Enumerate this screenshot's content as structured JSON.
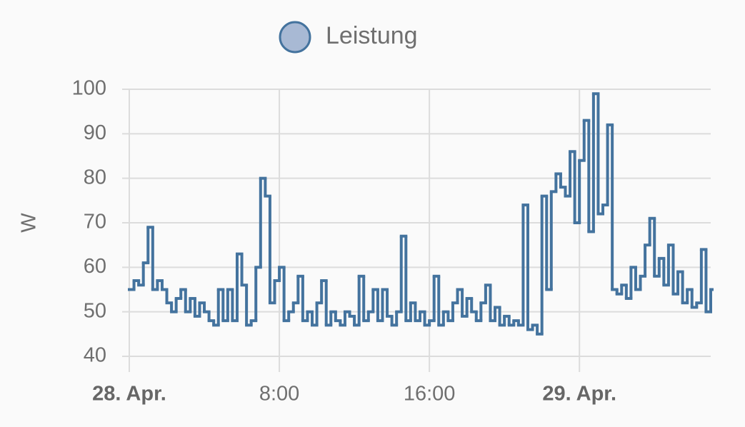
{
  "chart_data": {
    "type": "step-line",
    "ylabel": "W",
    "legend": "top",
    "grid": true,
    "xlim": [
      0,
      31
    ],
    "ylim": [
      40,
      100
    ],
    "yticks": [
      40,
      50,
      60,
      70,
      80,
      90,
      100
    ],
    "xticks": [
      {
        "value": 0,
        "label": "28. Apr."
      },
      {
        "value": 8,
        "label": "8:00"
      },
      {
        "value": 16,
        "label": "16:00"
      },
      {
        "value": 24,
        "label": "29. Apr."
      }
    ],
    "bold_xticks": [
      0,
      24
    ],
    "x": [
      0,
      0.25,
      0.5,
      0.75,
      1,
      1.25,
      1.5,
      1.75,
      2,
      2.25,
      2.5,
      2.75,
      3,
      3.25,
      3.5,
      3.75,
      4,
      4.25,
      4.5,
      4.75,
      5,
      5.25,
      5.5,
      5.75,
      6,
      6.25,
      6.5,
      6.75,
      7,
      7.25,
      7.5,
      7.75,
      8,
      8.25,
      8.5,
      8.75,
      9,
      9.25,
      9.5,
      9.75,
      10,
      10.25,
      10.5,
      10.75,
      11,
      11.25,
      11.5,
      11.75,
      12,
      12.25,
      12.5,
      12.75,
      13,
      13.25,
      13.5,
      13.75,
      14,
      14.25,
      14.5,
      14.75,
      15,
      15.25,
      15.5,
      15.75,
      16,
      16.25,
      16.5,
      16.75,
      17,
      17.25,
      17.5,
      17.75,
      18,
      18.25,
      18.5,
      18.75,
      19,
      19.25,
      19.5,
      19.75,
      20,
      20.25,
      20.5,
      20.75,
      21,
      21.25,
      21.5,
      21.75,
      22,
      22.25,
      22.5,
      22.75,
      23,
      23.25,
      23.5,
      23.75,
      24,
      24.25,
      24.5,
      24.75,
      25,
      25.25,
      25.5,
      25.75,
      26,
      26.25,
      26.5,
      26.75,
      27,
      27.25,
      27.5,
      27.75,
      28,
      28.25,
      28.5,
      28.75,
      29,
      29.25,
      29.5,
      29.75,
      30,
      30.25,
      30.5,
      30.75,
      31
    ],
    "series": [
      {
        "name": "Leistung",
        "color": "#44739e",
        "fill": "#a8b9d4",
        "values": [
          55,
          57,
          56,
          61,
          69,
          55,
          57,
          55,
          52,
          50,
          53,
          55,
          50,
          53,
          49,
          52,
          50,
          48,
          47,
          55,
          48,
          55,
          48,
          63,
          56,
          47,
          48,
          60,
          80,
          76,
          52,
          57,
          60,
          48,
          50,
          52,
          58,
          48,
          50,
          47,
          52,
          57,
          47,
          50,
          48,
          47,
          50,
          49,
          47,
          58,
          48,
          50,
          55,
          48,
          55,
          49,
          47,
          50,
          67,
          48,
          52,
          48,
          50,
          47,
          48,
          58,
          47,
          50,
          48,
          52,
          55,
          49,
          53,
          50,
          48,
          52,
          56,
          48,
          51,
          47,
          49,
          47,
          48,
          47,
          74,
          46,
          47,
          45,
          76,
          55,
          77,
          81,
          78,
          76,
          86,
          70,
          84,
          93,
          68,
          99,
          72,
          74,
          92,
          55,
          54,
          56,
          53,
          60,
          55,
          58,
          65,
          71,
          58,
          62,
          56,
          65,
          54,
          59,
          52,
          55,
          51,
          52,
          64,
          50,
          55
        ]
      }
    ]
  }
}
